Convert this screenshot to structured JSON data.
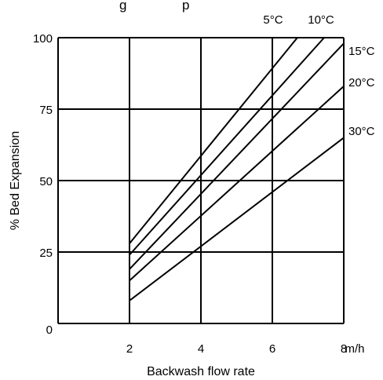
{
  "chart_data": {
    "type": "line",
    "title": "",
    "xlabel": "Backwash flow rate",
    "ylabel": "% Bed Expansion",
    "x_unit": "m/h",
    "xlim": [
      0,
      8
    ],
    "ylim": [
      0,
      100
    ],
    "x_ticks": [
      "2",
      "4",
      "6",
      "8"
    ],
    "y_ticks": [
      "0",
      "25",
      "50",
      "75",
      "100"
    ],
    "grid": true,
    "series": [
      {
        "name": "5°C",
        "x": [
          2,
          6.7
        ],
        "y": [
          28,
          100
        ]
      },
      {
        "name": "10°C",
        "x": [
          2,
          7.45
        ],
        "y": [
          24,
          100
        ]
      },
      {
        "name": "15°C",
        "x": [
          2,
          8
        ],
        "y": [
          19,
          98
        ]
      },
      {
        "name": "20°C",
        "x": [
          2,
          8
        ],
        "y": [
          15,
          83
        ]
      },
      {
        "name": "30°C",
        "x": [
          2,
          8
        ],
        "y": [
          8,
          65
        ]
      }
    ]
  }
}
